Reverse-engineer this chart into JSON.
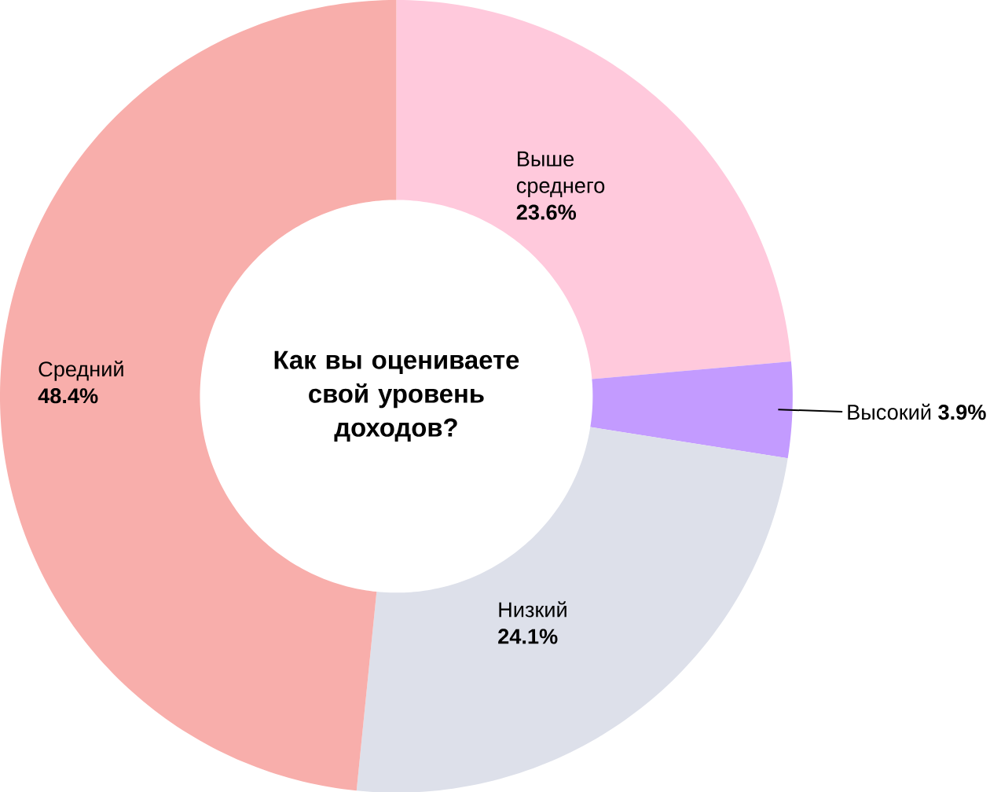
{
  "chart_data": {
    "type": "donut",
    "title": "Как вы оцениваете свой уровень доходов?",
    "categories": [
      "Выше среднего",
      "Высокий",
      "Низкий",
      "Средний"
    ],
    "values": [
      23.6,
      3.9,
      24.1,
      48.4
    ],
    "value_labels": [
      "23.6%",
      "3.9%",
      "24.1%",
      "48.4%"
    ],
    "colors": [
      "#ffc9dc",
      "#c39bff",
      "#dde0ea",
      "#f8aeab"
    ]
  }
}
